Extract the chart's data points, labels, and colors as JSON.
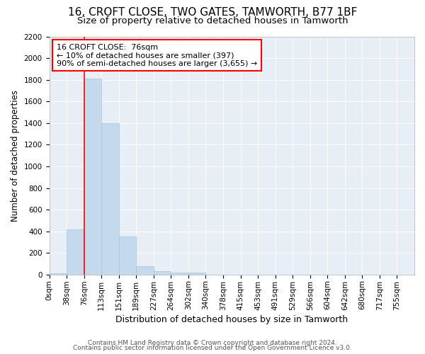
{
  "title": "16, CROFT CLOSE, TWO GATES, TAMWORTH, B77 1BF",
  "subtitle": "Size of property relative to detached houses in Tamworth",
  "xlabel": "Distribution of detached houses by size in Tamworth",
  "ylabel": "Number of detached properties",
  "bar_color": "#c5d9ed",
  "bar_edge_color": "#a8c4de",
  "background_color": "#e8eef5",
  "grid_color": "white",
  "categories": [
    "0sqm",
    "38sqm",
    "76sqm",
    "113sqm",
    "151sqm",
    "189sqm",
    "227sqm",
    "264sqm",
    "302sqm",
    "340sqm",
    "378sqm",
    "415sqm",
    "453sqm",
    "491sqm",
    "529sqm",
    "566sqm",
    "604sqm",
    "642sqm",
    "680sqm",
    "717sqm",
    "755sqm"
  ],
  "values": [
    10,
    420,
    1810,
    1400,
    350,
    75,
    30,
    20,
    15,
    0,
    0,
    0,
    0,
    0,
    0,
    0,
    0,
    0,
    0,
    0,
    0
  ],
  "ylim": [
    0,
    2200
  ],
  "yticks": [
    0,
    200,
    400,
    600,
    800,
    1000,
    1200,
    1400,
    1600,
    1800,
    2000,
    2200
  ],
  "property_line_x": 2,
  "annotation_line1": "16 CROFT CLOSE:  76sqm",
  "annotation_line2": "← 10% of detached houses are smaller (397)",
  "annotation_line3": "90% of semi-detached houses are larger (3,655) →",
  "annotation_box_color": "white",
  "annotation_box_edge_color": "red",
  "footer_line1": "Contains HM Land Registry data © Crown copyright and database right 2024.",
  "footer_line2": "Contains public sector information licensed under the Open Government Licence v3.0.",
  "title_fontsize": 11,
  "subtitle_fontsize": 9.5,
  "ylabel_fontsize": 8.5,
  "xlabel_fontsize": 9,
  "tick_fontsize": 7.5,
  "annotation_fontsize": 8,
  "footer_fontsize": 6.5
}
